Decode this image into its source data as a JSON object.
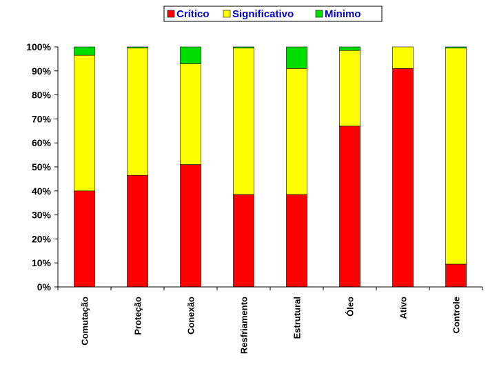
{
  "chart_data": {
    "type": "bar",
    "stacked": true,
    "categories": [
      "Comutação",
      "Proteção",
      "Conexão",
      "Resfriamento",
      "Estrutural",
      "Óleo",
      "Ativo",
      "Controle"
    ],
    "series": [
      {
        "name": "Crítico",
        "color": "#ff0000",
        "values": [
          40,
          46.5,
          51,
          38.5,
          38.5,
          67,
          91,
          9.5
        ]
      },
      {
        "name": "Significativo",
        "color": "#ffff00",
        "values": [
          56.5,
          53,
          42,
          61,
          52.5,
          31.5,
          9,
          90
        ]
      },
      {
        "name": "Mínimo",
        "color": "#00dd00",
        "values": [
          3.5,
          0.5,
          7,
          0.5,
          9,
          1.5,
          0,
          0.5
        ]
      }
    ],
    "y_ticks": [
      "0%",
      "10%",
      "20%",
      "30%",
      "40%",
      "50%",
      "60%",
      "70%",
      "80%",
      "90%",
      "100%"
    ],
    "ylim": [
      0,
      100
    ],
    "legend_position": "top",
    "grid": false,
    "title": "",
    "xlabel": "",
    "ylabel": ""
  }
}
